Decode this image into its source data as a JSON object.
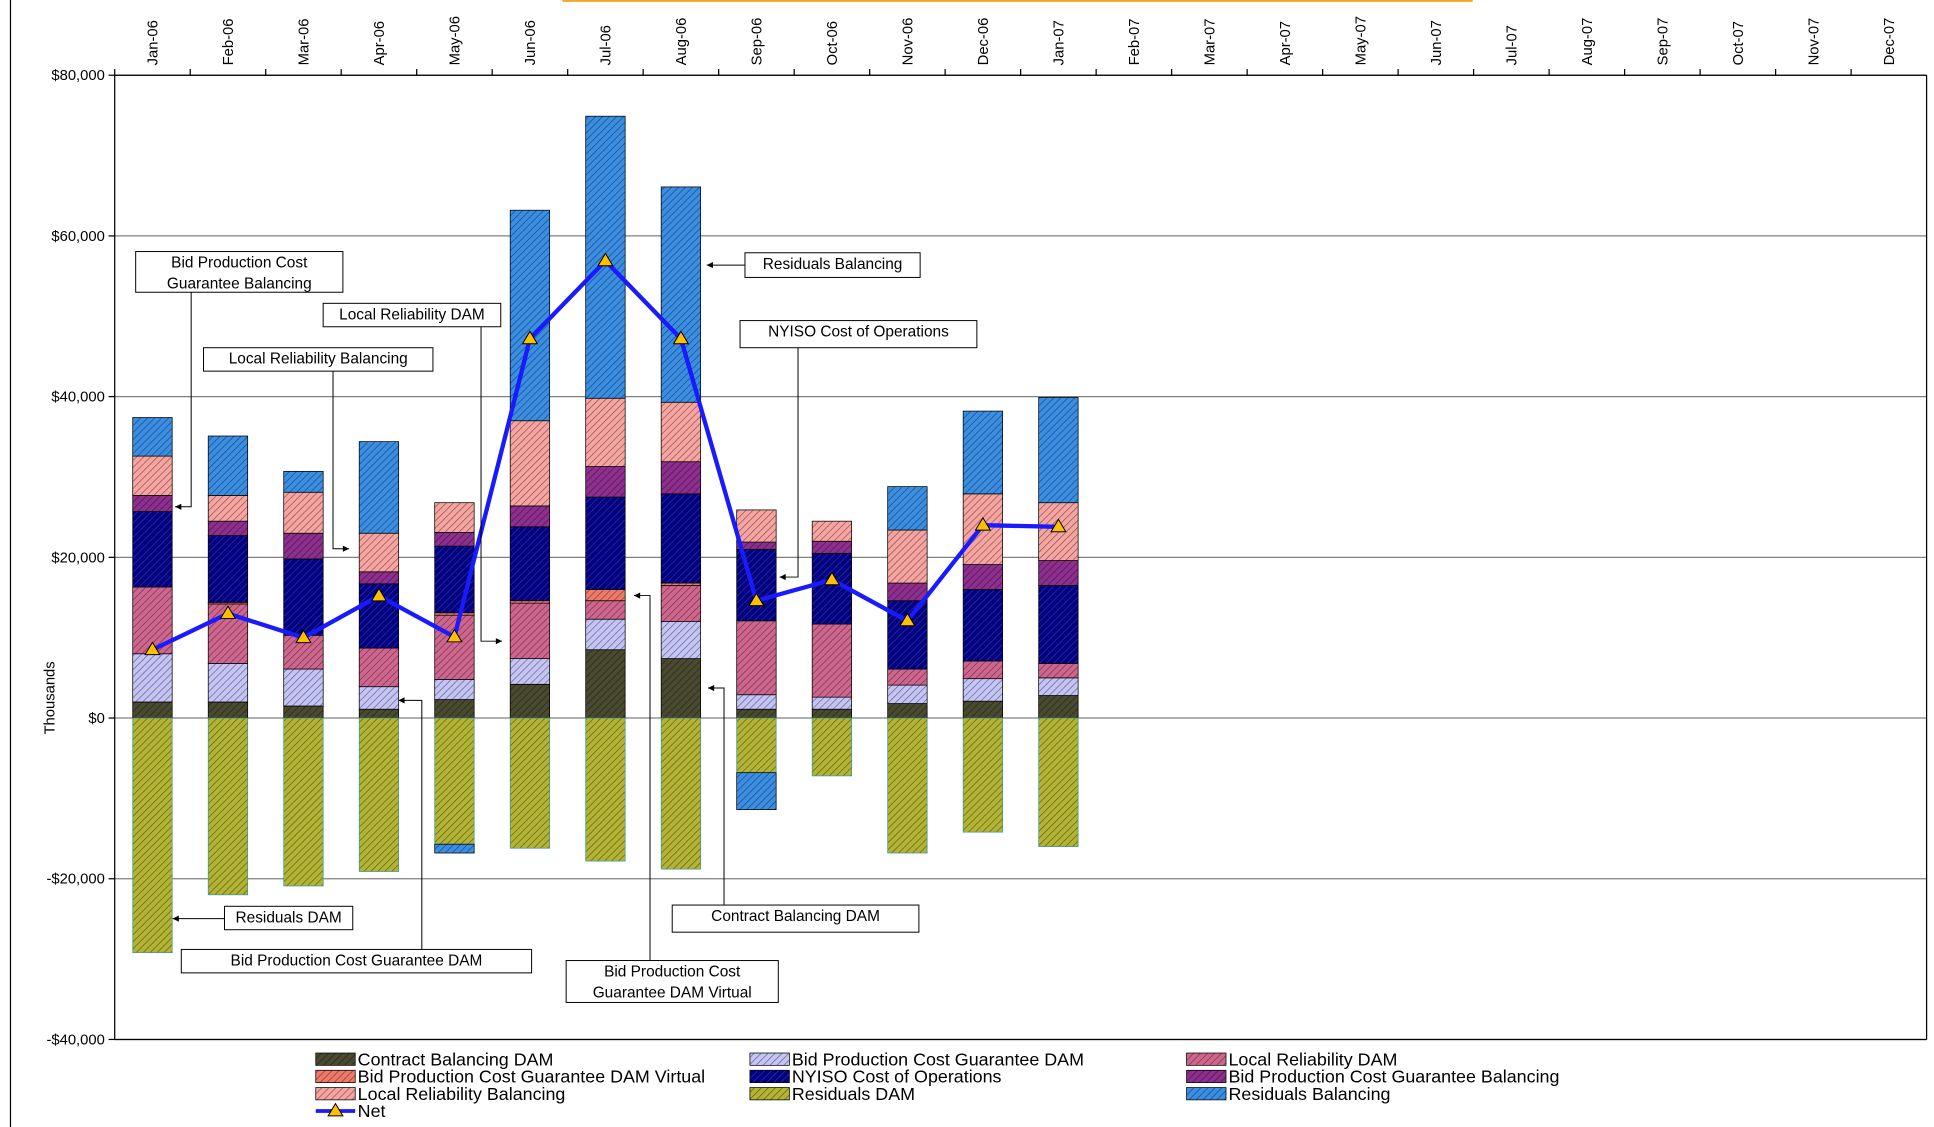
{
  "chart_data": {
    "type": "stacked-bar",
    "y_label": "Thousands",
    "categories": [
      "Jan-06",
      "Feb-06",
      "Mar-06",
      "Apr-06",
      "May-06",
      "Jun-06",
      "Jul-06",
      "Aug-06",
      "Sep-06",
      "Oct-06",
      "Nov-06",
      "Dec-06",
      "Jan-07",
      "Feb-07",
      "Mar-07",
      "Apr-07",
      "May-07",
      "Jun-07",
      "Jul-07",
      "Aug-07",
      "Sep-07",
      "Oct-07",
      "Nov-07",
      "Dec-07"
    ],
    "ylim": [
      -40000,
      80000
    ],
    "yticks": [
      {
        "value": -40000,
        "label": "-$40,000"
      },
      {
        "value": -20000,
        "label": "-$20,000"
      },
      {
        "value": 0,
        "label": "$0"
      },
      {
        "value": 20000,
        "label": "$20,000"
      },
      {
        "value": 40000,
        "label": "$40,000"
      },
      {
        "value": 60000,
        "label": "$60,000"
      },
      {
        "value": 80000,
        "label": "$80,000"
      }
    ],
    "grid": true,
    "series": [
      {
        "name": "Contract Balancing DAM",
        "color": "#4a4a30",
        "values": [
          2000,
          2000,
          1500,
          1100,
          2300,
          4200,
          8500,
          7400,
          1100,
          1100,
          1800,
          2100,
          2800,
          null,
          null,
          null,
          null,
          null,
          null,
          null,
          null,
          null,
          null,
          null
        ]
      },
      {
        "name": "Bid Production Cost Guarantee DAM",
        "color": "#c4c4f6",
        "values": [
          6000,
          4800,
          4600,
          2800,
          2500,
          3200,
          3800,
          4600,
          1800,
          1500,
          2300,
          2800,
          2200,
          null,
          null,
          null,
          null,
          null,
          null,
          null,
          null,
          null,
          null,
          null
        ]
      },
      {
        "name": "Local Reliability DAM",
        "color": "#d0668e",
        "values": [
          8300,
          7400,
          4200,
          4800,
          8000,
          6900,
          2300,
          4500,
          9200,
          9100,
          2000,
          2200,
          1800,
          null,
          null,
          null,
          null,
          null,
          null,
          null,
          null,
          null,
          null,
          null
        ]
      },
      {
        "name": "Bid Production Cost Guarantee DAM Virtual",
        "color": "#f07a6a",
        "values": [
          0,
          200,
          0,
          0,
          300,
          300,
          1400,
          300,
          0,
          0,
          0,
          0,
          0,
          null,
          null,
          null,
          null,
          null,
          null,
          null,
          null,
          null,
          null,
          null
        ]
      },
      {
        "name": "NYISO Cost of Operations",
        "color": "#000080",
        "values": [
          9400,
          8300,
          9500,
          8000,
          8300,
          9200,
          11500,
          11100,
          8900,
          8800,
          8500,
          8900,
          9700,
          null,
          null,
          null,
          null,
          null,
          null,
          null,
          null,
          null,
          null,
          null
        ]
      },
      {
        "name": "Bid Production Cost Guarantee Balancing",
        "color": "#8e2e8e",
        "values": [
          2000,
          1800,
          3200,
          1500,
          1700,
          2600,
          3800,
          4000,
          900,
          1500,
          2200,
          3100,
          3100,
          null,
          null,
          null,
          null,
          null,
          null,
          null,
          null,
          null,
          null,
          null
        ]
      },
      {
        "name": "Local Reliability Balancing",
        "color": "#f8a4a0",
        "values": [
          4900,
          3200,
          5100,
          4800,
          3700,
          10600,
          8500,
          7400,
          4000,
          2500,
          6600,
          8800,
          7200,
          null,
          null,
          null,
          null,
          null,
          null,
          null,
          null,
          null,
          null,
          null
        ]
      },
      {
        "name": "Residuals DAM",
        "color": "#b4b434",
        "values": [
          -29200,
          -22000,
          -20900,
          -19100,
          -15700,
          -16200,
          -17800,
          -18800,
          -6800,
          -7200,
          -16800,
          -14200,
          -16000,
          null,
          null,
          null,
          null,
          null,
          null,
          null,
          null,
          null,
          null,
          null
        ]
      },
      {
        "name": "Residuals Balancing",
        "color": "#3a8ee4",
        "values": [
          4800,
          7400,
          2600,
          11400,
          -1100,
          26200,
          35100,
          26800,
          -4600,
          0,
          5400,
          10300,
          13100,
          null,
          null,
          null,
          null,
          null,
          null,
          null,
          null,
          null,
          null,
          null
        ]
      }
    ],
    "net": {
      "name": "Net",
      "color": "#1a1aff",
      "marker_color": "#ffc000",
      "values": [
        8500,
        13000,
        10000,
        15200,
        10100,
        47200,
        56900,
        47200,
        14600,
        17200,
        12100,
        24000,
        23800,
        null,
        null,
        null,
        null,
        null,
        null,
        null,
        null,
        null,
        null,
        null
      ]
    },
    "annotations": [
      {
        "lines": [
          "Bid Production Cost",
          "Guarantee Balancing"
        ]
      },
      {
        "lines": [
          "Local Reliability DAM"
        ]
      },
      {
        "lines": [
          "Local Reliability Balancing"
        ]
      },
      {
        "lines": [
          "Residuals Balancing"
        ]
      },
      {
        "lines": [
          "NYISO Cost of Operations"
        ]
      },
      {
        "lines": [
          "Residuals DAM"
        ]
      },
      {
        "lines": [
          "Bid Production Cost Guarantee DAM"
        ]
      },
      {
        "lines": [
          "Bid Production Cost",
          "Guarantee DAM Virtual"
        ]
      },
      {
        "lines": [
          "Contract Balancing DAM"
        ]
      }
    ]
  }
}
